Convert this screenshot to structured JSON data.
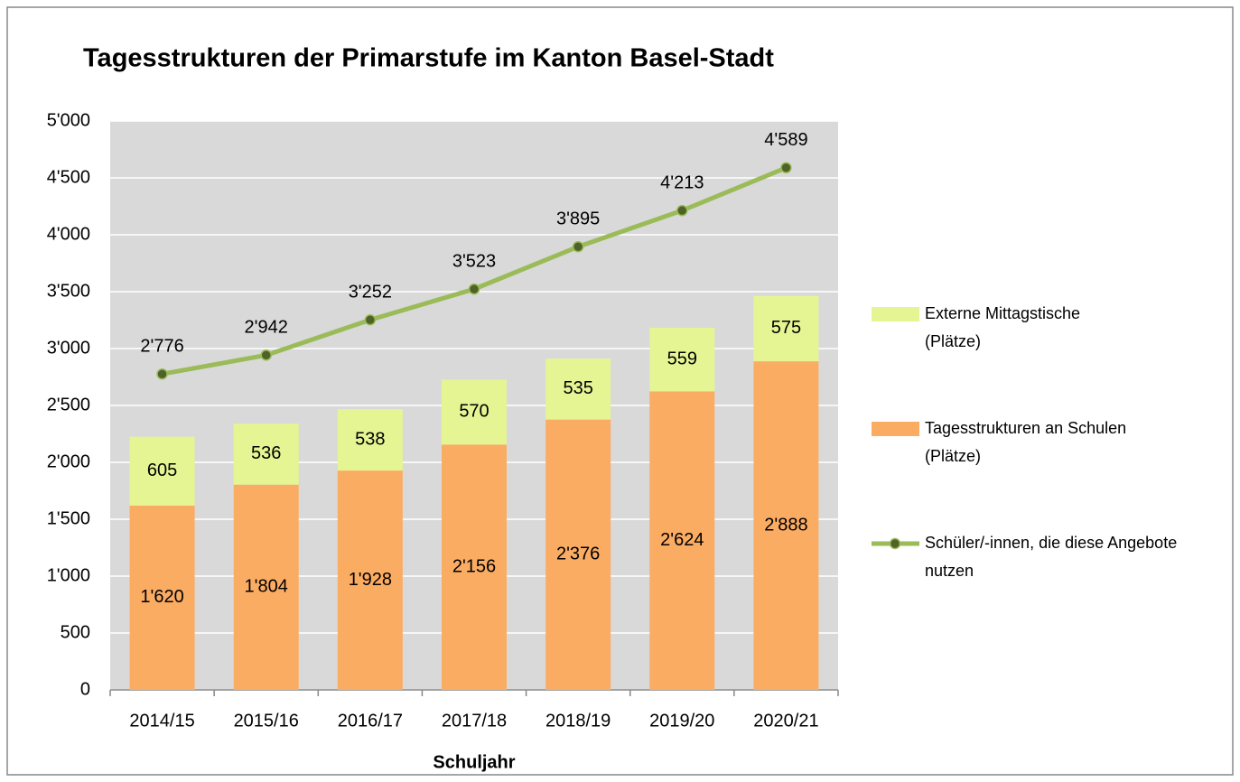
{
  "chart_data": {
    "type": "bar",
    "title": "Tagesstrukturen der Primarstufe im Kanton Basel-Stadt",
    "x_label": "Schuljahr",
    "categories": [
      "2014/15",
      "2015/16",
      "2016/17",
      "2017/18",
      "2018/19",
      "2019/20",
      "2020/21"
    ],
    "series": [
      {
        "name": "Tagesstrukturen an Schulen (Plätze)",
        "type": "bar",
        "color": "#fbac63",
        "values": [
          1620,
          1804,
          1928,
          2156,
          2376,
          2624,
          2888
        ],
        "value_labels": [
          "1'620",
          "1'804",
          "1'928",
          "2'156",
          "2'376",
          "2'624",
          "2'888"
        ]
      },
      {
        "name": "Externe Mittagstische (Plätze)",
        "type": "bar",
        "color": "#e6f593",
        "values": [
          605,
          536,
          538,
          570,
          535,
          559,
          575
        ],
        "value_labels": [
          "605",
          "536",
          "538",
          "570",
          "535",
          "559",
          "575"
        ]
      },
      {
        "name": "Schüler/-innen, die diese Angebote nutzen",
        "type": "line",
        "color": "#9bbb59",
        "marker_color": "#4f6228",
        "values": [
          2776,
          2942,
          3252,
          3523,
          3895,
          4213,
          4589
        ],
        "value_labels": [
          "2'776",
          "2'942",
          "3'252",
          "3'523",
          "3'895",
          "4'213",
          "4'589"
        ]
      }
    ],
    "stacked": true,
    "ylim": [
      0,
      5000
    ],
    "yticks": [
      0,
      500,
      {
        "value": 1000,
        "label": "1'000"
      },
      {
        "value": 1500,
        "label": "1'500"
      },
      {
        "value": 2000,
        "label": "2'000"
      },
      {
        "value": 2500,
        "label": "2'500"
      },
      {
        "value": 3000,
        "label": "3'000"
      },
      {
        "value": 3500,
        "label": "3'500"
      },
      {
        "value": 4000,
        "label": "4'000"
      },
      {
        "value": 4500,
        "label": "4'500"
      },
      {
        "value": 5000,
        "label": "5'000"
      }
    ],
    "grid": true,
    "legend": "right"
  }
}
